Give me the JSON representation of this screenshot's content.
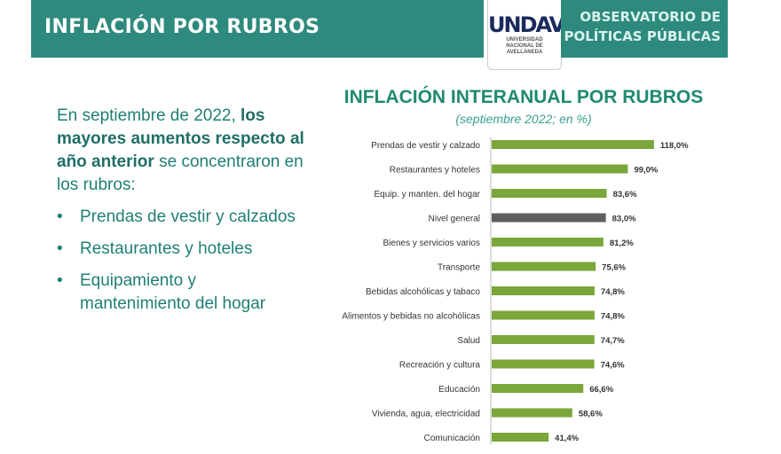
{
  "header": {
    "title": "INFLACIÓN POR RUBROS",
    "logo": "UNDAV",
    "logo_sub": [
      "UNIVERSIDAD",
      "NACIONAL DE",
      "AVELLANEDA"
    ],
    "observatorio": [
      "OBSERVATORIO DE",
      "POLÍTICAS PÚBLICAS"
    ]
  },
  "text": {
    "intro1": "En septiembre de 2022,",
    "intro2": "los mayores aumentos respecto al año anterior",
    "intro3": "se concentraron en los rubros:",
    "bullets": [
      "Prendas de vestir y calzados",
      "Restaurantes y hoteles",
      "Equipamiento y mantenimiento del hogar"
    ]
  },
  "chart_data": {
    "type": "bar",
    "orientation": "horizontal",
    "title": "INFLACIÓN INTERANUAL POR RUBROS",
    "subtitle": "(septiembre 2022; en %)",
    "categories": [
      "Prendas de vestir y calzado",
      "Restaurantes y hoteles",
      "Equip. y manten. del hogar",
      "Nivel general",
      "Bienes y servicios varios",
      "Transporte",
      "Bebidas alcohólicas y tabaco",
      "Alimentos y bebidas no alcohólicas",
      "Salud",
      "Recreación y cultura",
      "Educación",
      "Vivienda, agua, electricidad",
      "Comunicación"
    ],
    "values": [
      118.0,
      99.0,
      83.6,
      83.0,
      81.2,
      75.6,
      74.8,
      74.8,
      74.7,
      74.6,
      66.6,
      58.6,
      41.4
    ],
    "labels": [
      "118,0%",
      "99,0%",
      "83,6%",
      "83,0%",
      "81,2%",
      "75,6%",
      "74,8%",
      "74,8%",
      "74,7%",
      "74,6%",
      "66,6%",
      "58,6%",
      "41,4%"
    ],
    "highlight": "Nivel general",
    "colors": {
      "bar": "#7aa63a",
      "highlight": "#5e5e5e"
    }
  }
}
